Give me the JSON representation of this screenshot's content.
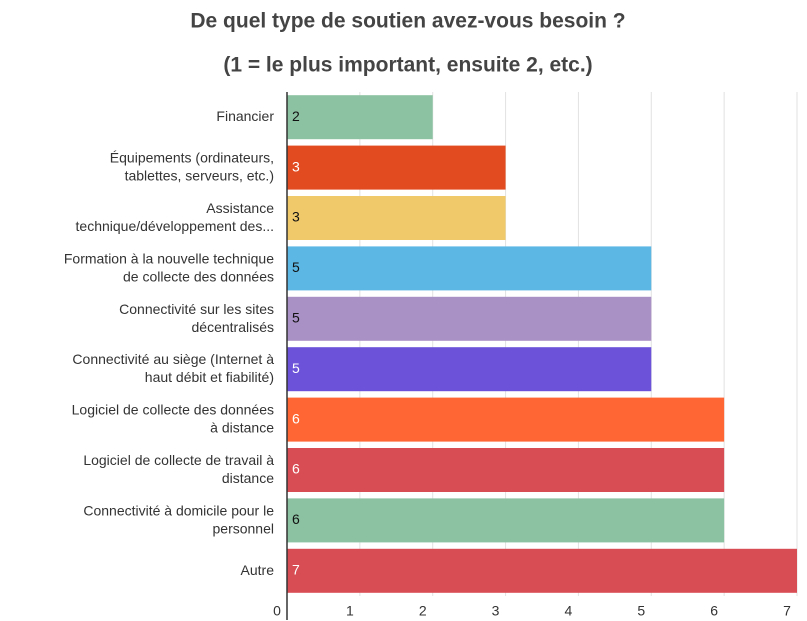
{
  "chart_data": {
    "type": "bar",
    "orientation": "horizontal",
    "title": [
      "De quel type de soutien avez-vous besoin ?",
      "(1 = le plus important, ensuite 2, etc.)"
    ],
    "categories": [
      [
        "Financier"
      ],
      [
        "Équipements (ordinateurs,",
        "tablettes, serveurs, etc.)"
      ],
      [
        "Assistance",
        "technique/développement des..."
      ],
      [
        "Formation à la nouvelle technique",
        "de collecte des données"
      ],
      [
        "Connectivité sur les sites",
        "décentralisés"
      ],
      [
        "Connectivité au siège (Internet à",
        "haut débit et fiabilité)"
      ],
      [
        "Logiciel de collecte des données",
        "à distance"
      ],
      [
        "Logiciel de collecte de travail à",
        "distance"
      ],
      [
        "Connectivité à domicile pour le",
        "personnel"
      ],
      [
        "Autre"
      ]
    ],
    "values": [
      2,
      3,
      3,
      5,
      5,
      5,
      6,
      6,
      6,
      7
    ],
    "colors": [
      "#8cc2a2",
      "#e24b20",
      "#f0c96b",
      "#5db7e4",
      "#a990c5",
      "#6b52d8",
      "#ff6633",
      "#d84c53",
      "#8cc2a2",
      "#d84c53"
    ],
    "xlim": [
      0,
      7
    ],
    "xticks": [
      0,
      1,
      2,
      3,
      4,
      5,
      6,
      7
    ],
    "grid": true
  }
}
